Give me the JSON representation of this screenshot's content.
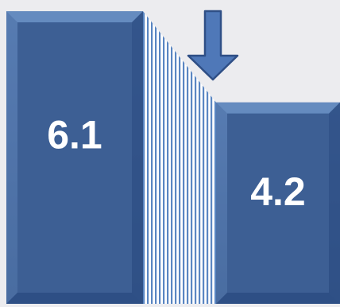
{
  "chart_data": {
    "type": "bar",
    "categories": [
      "",
      ""
    ],
    "values": [
      6.1,
      4.2
    ],
    "data_labels": [
      "6.1",
      "4.2"
    ],
    "title": "",
    "xlabel": "",
    "ylabel": "",
    "grid": false,
    "annotation": {
      "type": "down-arrow",
      "meaning": "decrease"
    },
    "colors": {
      "bar_fill": "#3d5f94",
      "bar_fill_dark": "#2e4f84",
      "bar_highlight": "#6f95c8",
      "stripe": "#5a86c2",
      "stripe_bg": "#ffffff",
      "arrow": "#4f78b8",
      "arrow_edge": "#2f4f86",
      "label": "#ffffff",
      "background": "#ececef"
    }
  }
}
